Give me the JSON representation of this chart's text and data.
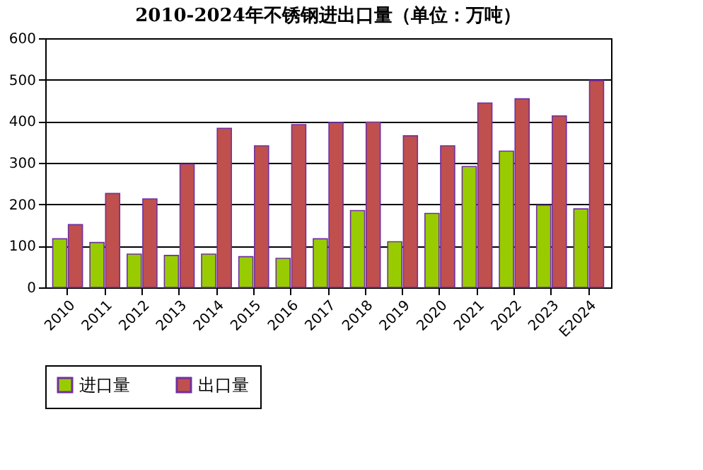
{
  "chart_data": {
    "type": "bar",
    "title": "2010-2024年不锈钢进出口量（单位：万吨）",
    "categories": [
      "2010",
      "2011",
      "2012",
      "2013",
      "2014",
      "2015",
      "2016",
      "2017",
      "2018",
      "2019",
      "2020",
      "2021",
      "2022",
      "2023",
      "E2024"
    ],
    "series": [
      {
        "name": "进口量",
        "color": "#99cc00",
        "values": [
          117,
          108,
          80,
          77,
          80,
          74,
          70,
          117,
          185,
          110,
          178,
          291,
          328,
          198,
          189
        ]
      },
      {
        "name": "出口量",
        "color": "#c0504d",
        "values": [
          151,
          226,
          213,
          297,
          383,
          341,
          392,
          397,
          398,
          365,
          341,
          444,
          454,
          413,
          498
        ]
      }
    ],
    "ylim": [
      0,
      600
    ],
    "yticks": [
      0,
      100,
      200,
      300,
      400,
      500,
      600
    ],
    "grid": "y",
    "legend": "bottom"
  }
}
